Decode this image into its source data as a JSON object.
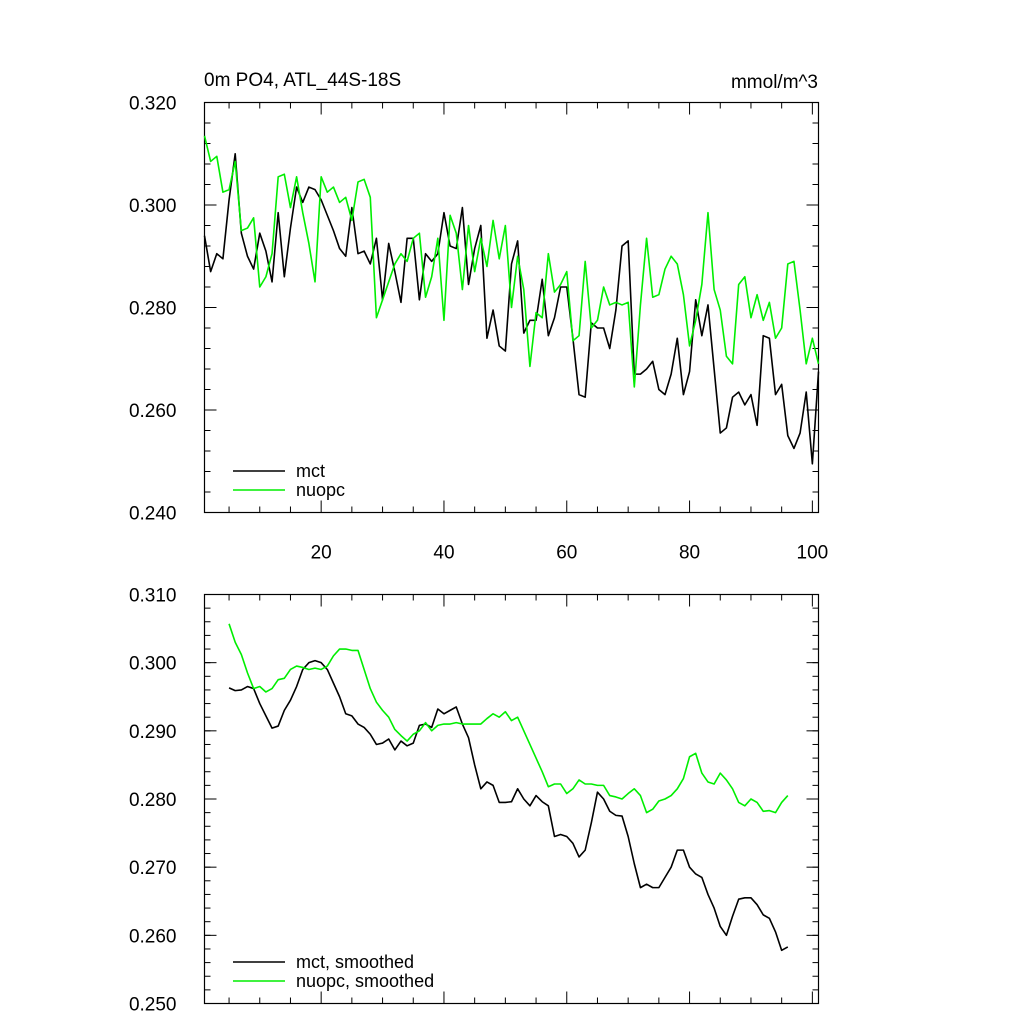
{
  "chart_data": [
    {
      "type": "line",
      "title": "0m PO4, ATL_44S-18S",
      "units": "mmol/m^3",
      "ylim": [
        0.24,
        0.32
      ],
      "xlim": [
        1,
        101
      ],
      "yticks": [
        "0.240",
        "0.260",
        "0.280",
        "0.300",
        "0.320"
      ],
      "xticks": [
        "20",
        "40",
        "60",
        "80",
        "100"
      ],
      "legend_position": "bottom-left",
      "series": [
        {
          "name": "mct",
          "color": "#000000",
          "x_start": 1,
          "values": [
            0.294,
            0.287,
            0.2905,
            0.2895,
            0.301,
            0.31,
            0.2945,
            0.29,
            0.2875,
            0.2945,
            0.291,
            0.285,
            0.2985,
            0.286,
            0.2955,
            0.3035,
            0.3005,
            0.3035,
            0.303,
            0.301,
            0.298,
            0.295,
            0.2915,
            0.29,
            0.2995,
            0.2905,
            0.291,
            0.2885,
            0.2935,
            0.2815,
            0.2925,
            0.287,
            0.281,
            0.2935,
            0.2935,
            0.2815,
            0.2905,
            0.289,
            0.2905,
            0.2985,
            0.292,
            0.2915,
            0.2995,
            0.2845,
            0.2915,
            0.296,
            0.274,
            0.2795,
            0.2725,
            0.2715,
            0.2885,
            0.293,
            0.275,
            0.2775,
            0.2775,
            0.2855,
            0.2745,
            0.278,
            0.284,
            0.284,
            0.274,
            0.263,
            0.2625,
            0.277,
            0.276,
            0.276,
            0.272,
            0.2795,
            0.292,
            0.293,
            0.267,
            0.267,
            0.268,
            0.2695,
            0.264,
            0.263,
            0.267,
            0.274,
            0.263,
            0.2675,
            0.2815,
            0.2745,
            0.2805,
            0.268,
            0.2555,
            0.2565,
            0.2625,
            0.2635,
            0.261,
            0.263,
            0.257,
            0.2745,
            0.274,
            0.263,
            0.265,
            0.255,
            0.2525,
            0.2555,
            0.2635,
            0.2495,
            0.2675
          ]
        },
        {
          "name": "nuopc",
          "color": "#00ee00",
          "x_start": 1,
          "values": [
            0.3135,
            0.3085,
            0.3095,
            0.3025,
            0.303,
            0.3085,
            0.295,
            0.2955,
            0.2975,
            0.284,
            0.286,
            0.2905,
            0.3055,
            0.306,
            0.2995,
            0.3055,
            0.2985,
            0.2925,
            0.285,
            0.3055,
            0.3025,
            0.3035,
            0.3005,
            0.3015,
            0.297,
            0.3045,
            0.305,
            0.3015,
            0.278,
            0.2815,
            0.285,
            0.2885,
            0.2905,
            0.289,
            0.2935,
            0.2945,
            0.282,
            0.286,
            0.2935,
            0.2775,
            0.298,
            0.2945,
            0.2835,
            0.296,
            0.287,
            0.2935,
            0.288,
            0.297,
            0.2895,
            0.296,
            0.28,
            0.29,
            0.2835,
            0.2685,
            0.279,
            0.278,
            0.2905,
            0.283,
            0.2845,
            0.287,
            0.2735,
            0.2745,
            0.289,
            0.276,
            0.2775,
            0.284,
            0.2805,
            0.281,
            0.2805,
            0.281,
            0.2645,
            0.2805,
            0.2935,
            0.282,
            0.2825,
            0.2875,
            0.29,
            0.2885,
            0.2825,
            0.2725,
            0.2775,
            0.2845,
            0.2985,
            0.2835,
            0.2795,
            0.2705,
            0.269,
            0.2845,
            0.286,
            0.278,
            0.2825,
            0.2775,
            0.281,
            0.274,
            0.276,
            0.2885,
            0.289,
            0.2795,
            0.269,
            0.274,
            0.269
          ]
        }
      ]
    },
    {
      "type": "line",
      "ylim": [
        0.25,
        0.31
      ],
      "xlim": [
        1,
        101
      ],
      "yticks": [
        "0.250",
        "0.260",
        "0.270",
        "0.280",
        "0.290",
        "0.300",
        "0.310"
      ],
      "legend_position": "bottom-left",
      "series": [
        {
          "name": "mct, smoothed",
          "color": "#000000",
          "x_start": 5,
          "values": [
            0.2963,
            0.2959,
            0.296,
            0.2965,
            0.2962,
            0.294,
            0.2922,
            0.2904,
            0.2907,
            0.293,
            0.2945,
            0.2965,
            0.299,
            0.3,
            0.3003,
            0.3,
            0.299,
            0.297,
            0.295,
            0.2925,
            0.2922,
            0.291,
            0.2905,
            0.2895,
            0.288,
            0.2882,
            0.2888,
            0.2872,
            0.2885,
            0.2878,
            0.2882,
            0.2908,
            0.291,
            0.2905,
            0.2932,
            0.2925,
            0.293,
            0.2935,
            0.291,
            0.289,
            0.285,
            0.2815,
            0.2825,
            0.282,
            0.2795,
            0.2795,
            0.2796,
            0.2815,
            0.28,
            0.279,
            0.2805,
            0.2796,
            0.279,
            0.2745,
            0.2748,
            0.2745,
            0.2735,
            0.2715,
            0.2725,
            0.2765,
            0.281,
            0.28,
            0.2782,
            0.2776,
            0.2775,
            0.2745,
            0.2705,
            0.267,
            0.2675,
            0.267,
            0.267,
            0.2685,
            0.27,
            0.2725,
            0.2725,
            0.27,
            0.269,
            0.2685,
            0.266,
            0.264,
            0.2613,
            0.26,
            0.2628,
            0.2653,
            0.2655,
            0.2655,
            0.2645,
            0.263,
            0.2625,
            0.2605,
            0.2578,
            0.2583
          ]
        },
        {
          "name": "nuopc, smoothed",
          "color": "#00ee00",
          "x_start": 5,
          "values": [
            0.3057,
            0.303,
            0.3012,
            0.2985,
            0.2962,
            0.2965,
            0.2957,
            0.2962,
            0.2975,
            0.2977,
            0.299,
            0.2995,
            0.2993,
            0.299,
            0.2992,
            0.299,
            0.2995,
            0.301,
            0.302,
            0.302,
            0.3018,
            0.3018,
            0.299,
            0.2962,
            0.2942,
            0.293,
            0.292,
            0.2902,
            0.2893,
            0.2885,
            0.2895,
            0.29,
            0.2912,
            0.29,
            0.2908,
            0.291,
            0.291,
            0.2912,
            0.291,
            0.291,
            0.291,
            0.291,
            0.2918,
            0.2925,
            0.292,
            0.2928,
            0.2915,
            0.292,
            0.29,
            0.288,
            0.286,
            0.284,
            0.2818,
            0.2822,
            0.2822,
            0.2808,
            0.2815,
            0.2828,
            0.2822,
            0.2822,
            0.282,
            0.282,
            0.2805,
            0.2803,
            0.28,
            0.2808,
            0.2815,
            0.2805,
            0.278,
            0.2785,
            0.2797,
            0.28,
            0.2805,
            0.2815,
            0.283,
            0.2862,
            0.2867,
            0.2838,
            0.2825,
            0.2822,
            0.2838,
            0.2828,
            0.2815,
            0.2795,
            0.279,
            0.28,
            0.2795,
            0.2782,
            0.2783,
            0.278,
            0.2795,
            0.2805
          ]
        }
      ]
    }
  ]
}
